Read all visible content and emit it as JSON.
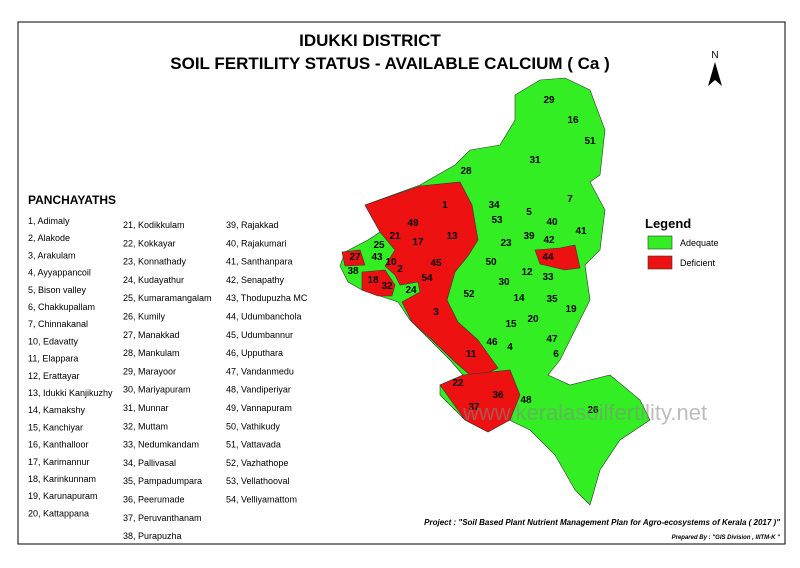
{
  "header": {
    "title": "IDUKKI DISTRICT",
    "subtitle": "SOIL FERTILITY STATUS - AVAILABLE CALCIUM ( Ca )"
  },
  "north": "N",
  "panchayaths": {
    "heading": "PANCHAYATHS",
    "columns": [
      [
        "1, Adimaly",
        "2, Alakode",
        "3, Arakulam",
        "4, Ayyappancoil",
        "5, Bison valley",
        "6, Chakkupallam",
        "7, Chinnakanal",
        "10, Edavatty",
        "11, Elappara",
        "12, Erattayar",
        "13, Idukki Kanjikuzhy",
        "14, Kamakshy",
        "15, Kanchiyar",
        "16, Kanthalloor",
        "17, Karimannur",
        "18, Karinkunnam",
        "19, Karunapuram",
        "20, Kattappana"
      ],
      [
        "21, Kodikkulam",
        "22, Kokkayar",
        "23, Konnathady",
        "24, Kudayathur",
        "25, Kumaramangalam",
        "26, Kumily",
        "27, Manakkad",
        "28, Mankulam",
        "29, Marayoor",
        "30, Mariyapuram",
        "31, Munnar",
        "32, Muttam",
        "33, Nedumkandam",
        "34, Pallivasal",
        "35, Pampadumpara",
        "36, Peerumade",
        "37, Peruvanthanam",
        "38, Purapuzha"
      ],
      [
        "39, Rajakkad",
        "40, Rajakumari",
        "41, Santhanpara",
        "42, Senapathy",
        "43, Thodupuzha MC",
        "44, Udumbanchola",
        "45, Udumbannur",
        "46, Upputhara",
        "47, Vandanmedu",
        "48, Vandiperiyar",
        "49, Vannapuram",
        "50, Vathikudy",
        "51, Vattavada",
        "52, Vazhathope",
        "53, Vellathooval",
        "54, Velliyamattom"
      ]
    ]
  },
  "legend": {
    "title": "Legend",
    "items": [
      {
        "label": "Adequate",
        "color": "#33ee22"
      },
      {
        "label": "Deficient",
        "color": "#ee1111"
      }
    ]
  },
  "map": {
    "labels": [
      "29",
      "16",
      "51",
      "31",
      "28",
      "34",
      "5",
      "7",
      "53",
      "40",
      "41",
      "39",
      "42",
      "23",
      "1",
      "49",
      "21",
      "17",
      "13",
      "25",
      "43",
      "10",
      "27",
      "38",
      "50",
      "44",
      "33",
      "2",
      "45",
      "54",
      "18",
      "32",
      "24",
      "52",
      "30",
      "12",
      "14",
      "35",
      "19",
      "3",
      "15",
      "20",
      "47",
      "46",
      "4",
      "6",
      "11",
      "22",
      "36",
      "48",
      "37",
      "26"
    ],
    "watermark": "www.keralasoilfertility.net"
  },
  "footer": {
    "project": "Project : \"Soil Based Plant Nutrient Management Plan for Agro-ecosystems of Kerala ( 2017 )\"",
    "prepared": "Prepared By : \"GIS Division , IIITM-K \""
  }
}
